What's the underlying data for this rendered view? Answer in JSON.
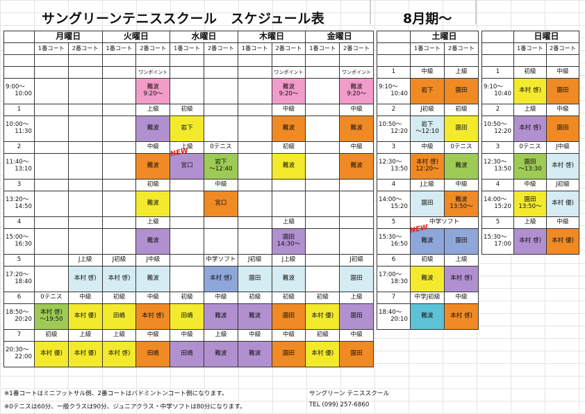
{
  "title": "サングリーンテニススクール　スケジュール表",
  "period": "8月期～",
  "courts": [
    "1番コート",
    "2番コート"
  ],
  "weekdays": {
    "days": [
      "月曜日",
      "火曜日",
      "水曜日",
      "木曜日",
      "金曜日"
    ],
    "rows": [
      {
        "kind": "label",
        "time": "",
        "cells": [
          "",
          "",
          "",
          "",
          "",
          "",
          "",
          "",
          "",
          ""
        ]
      },
      {
        "kind": "label",
        "time": "",
        "cells": [
          "",
          "",
          "",
          "ワンポイント",
          "",
          "",
          "",
          "ワンポイント",
          "",
          "ワンポイント"
        ]
      },
      {
        "kind": "slot",
        "t1": "9:00～",
        "t2": "10:00",
        "cells": [
          "",
          "",
          "",
          "難波\n9:20～",
          "",
          "",
          "",
          "難波\n9:20～",
          "",
          "難波\n9:20～"
        ]
      },
      {
        "kind": "label",
        "time": "1",
        "cells": [
          "",
          "",
          "",
          "上級",
          "初級",
          "",
          "",
          "中級",
          "",
          "中級"
        ]
      },
      {
        "kind": "slot",
        "t1": "10:00～",
        "t2": "11:30",
        "cells": [
          "",
          "",
          "",
          "難波",
          "岩下",
          "",
          "",
          "難波",
          "",
          "難波"
        ]
      },
      {
        "kind": "label",
        "time": "2",
        "cells": [
          "",
          "",
          "",
          "中級",
          "上級",
          "0テニス",
          "",
          "初級",
          "",
          "中級"
        ]
      },
      {
        "kind": "slot",
        "t1": "11:40～",
        "t2": "13:10",
        "cells": [
          "",
          "",
          "",
          "難波",
          "宮口",
          "岩下\n～12:40",
          "",
          "難波",
          "",
          "難波"
        ]
      },
      {
        "kind": "label",
        "time": "3",
        "cells": [
          "",
          "",
          "",
          "初級",
          "",
          "中級",
          "",
          "",
          "",
          ""
        ]
      },
      {
        "kind": "slot",
        "t1": "13:20～",
        "t2": "14:50",
        "cells": [
          "",
          "",
          "",
          "難波",
          "",
          "宮口",
          "",
          "",
          "",
          ""
        ]
      },
      {
        "kind": "label",
        "time": "4",
        "cells": [
          "",
          "",
          "",
          "上級",
          "",
          "",
          "",
          "上級",
          "",
          ""
        ]
      },
      {
        "kind": "slot",
        "t1": "15:00～",
        "t2": "16:30",
        "cells": [
          "",
          "",
          "",
          "難波",
          "",
          "",
          "",
          "園田\n14:30～",
          "",
          ""
        ]
      },
      {
        "kind": "label",
        "time": "5",
        "cells": [
          "",
          "J上級",
          "J初級",
          "J中級",
          "",
          "中学ソフト",
          "J初級",
          "J上級",
          "",
          "J初級"
        ]
      },
      {
        "kind": "slot",
        "t1": "17:20～",
        "t2": "18:40",
        "cells": [
          "",
          "本村 啓)",
          "本村 啓)",
          "難波",
          "",
          "本村 啓)",
          "園田",
          "難波",
          "",
          "園田"
        ]
      },
      {
        "kind": "label",
        "time": "6",
        "cells": [
          "0テニス",
          "中級",
          "初級",
          "中級",
          "初級",
          "中級",
          "初級",
          "初級",
          "初級",
          "上級"
        ]
      },
      {
        "kind": "slot",
        "t1": "18:50～",
        "t2": "20:20",
        "cells": [
          "本村 啓)\n～19:50",
          "本村 優)",
          "田嶋",
          "本村 啓)",
          "田嶋",
          "難波",
          "難波",
          "園田",
          "本村 優)",
          "園田"
        ]
      },
      {
        "kind": "label",
        "time": "7",
        "cells": [
          "初級",
          "上級",
          "上級",
          "中級",
          "中級",
          "上級",
          "中級",
          "中級",
          "初級",
          "中級"
        ]
      },
      {
        "kind": "slot",
        "t1": "20:30～",
        "t2": "22:00",
        "cells": [
          "本村 優)",
          "本村 優)",
          "本村 啓)",
          "田嶋",
          "田嶋",
          "難波",
          "難波",
          "園田",
          "本村 優)",
          "園田"
        ]
      }
    ]
  },
  "saturday": {
    "day": "土曜日",
    "rows": [
      {
        "kind": "label",
        "time": "",
        "cells": [
          "",
          ""
        ]
      },
      {
        "kind": "label",
        "time": "1",
        "cells": [
          "中級",
          "上級"
        ]
      },
      {
        "kind": "slot",
        "t1": "9:10～",
        "t2": "10:40",
        "cells": [
          "岩下",
          "園田"
        ]
      },
      {
        "kind": "label",
        "time": "2",
        "cells": [
          "J初級",
          "初級"
        ]
      },
      {
        "kind": "slot",
        "t1": "10:50～",
        "t2": "12:20",
        "cells": [
          "岩下\n～12:10",
          "園田"
        ]
      },
      {
        "kind": "label",
        "time": "3",
        "cells": [
          "中級",
          "0テニス"
        ]
      },
      {
        "kind": "slot",
        "t1": "12:30～",
        "t2": "13:50",
        "cells": [
          "本村 啓)\n12:20～",
          "難波"
        ]
      },
      {
        "kind": "label",
        "time": "4",
        "cells": [
          "J上級",
          "中級"
        ]
      },
      {
        "kind": "slot",
        "t1": "14:00～",
        "t2": "15:20",
        "cells": [
          "園田",
          "難波\n13:50～"
        ]
      },
      {
        "kind": "label",
        "time": "5",
        "cells": [
          "中学ソフト"
        ]
      },
      {
        "kind": "slot",
        "t1": "15:30～",
        "t2": "16:50",
        "cells": [
          "難波",
          "園田"
        ]
      },
      {
        "kind": "label",
        "time": "6",
        "cells": [
          "初級",
          "上級"
        ]
      },
      {
        "kind": "slot",
        "t1": "17:00～",
        "t2": "18:30",
        "cells": [
          "難波",
          "本村 啓)"
        ]
      },
      {
        "kind": "label",
        "time": "7",
        "cells": [
          "中学J初級",
          "中級"
        ]
      },
      {
        "kind": "slot",
        "t1": "18:40～",
        "t2": "20:10",
        "cells": [
          "難波",
          "本村 啓)"
        ]
      }
    ]
  },
  "sunday": {
    "day": "日曜日",
    "rows": [
      {
        "kind": "label",
        "time": "",
        "cells": [
          "",
          ""
        ]
      },
      {
        "kind": "label",
        "time": "1",
        "cells": [
          "初級",
          "中級"
        ]
      },
      {
        "kind": "slot",
        "t1": "9:10～",
        "t2": "10:40",
        "cells": [
          "本村 啓)",
          "園田"
        ]
      },
      {
        "kind": "label",
        "time": "2",
        "cells": [
          "上級",
          "中級"
        ]
      },
      {
        "kind": "slot",
        "t1": "10:50～",
        "t2": "12:20",
        "cells": [
          "本村 啓)",
          "園田"
        ]
      },
      {
        "kind": "label",
        "time": "3",
        "cells": [
          "0テニス",
          "J中級"
        ]
      },
      {
        "kind": "slot",
        "t1": "12:30～",
        "t2": "13:50",
        "cells": [
          "園田\n～13:30",
          "本村 啓)"
        ]
      },
      {
        "kind": "label",
        "time": "4",
        "cells": [
          "中級",
          "J初級"
        ]
      },
      {
        "kind": "slot",
        "t1": "14:00～",
        "t2": "15:20",
        "cells": [
          "園田\n13:50～",
          "本村 優)"
        ]
      },
      {
        "kind": "label",
        "time": "5",
        "cells": [
          "上級",
          "中級"
        ]
      },
      {
        "kind": "slot",
        "t1": "15:30～",
        "t2": "17:00",
        "cells": [
          "本村 啓)",
          "本村 優)"
        ]
      }
    ]
  },
  "new_badge": "NEW",
  "footer": {
    "note1": "※1番コートはミニフットサル側、2番コートはバドミントンコート側になります。",
    "note2": "※0テニスは60分、一般クラスは90分、ジュニアクラス・中学ソフトは80分になります。",
    "school": "サングリーン テニススクール",
    "tel": "TEL (099) 257-6860"
  },
  "colors": {
    "pink": "#f29cc9",
    "purple": "#b190cf",
    "yellow": "#f4ea2d",
    "orange": "#f08a24",
    "light_blue": "#d4ecf2",
    "blue": "#8fa6d9",
    "green": "#9ecb55",
    "cyan": "#5cc2d6"
  }
}
